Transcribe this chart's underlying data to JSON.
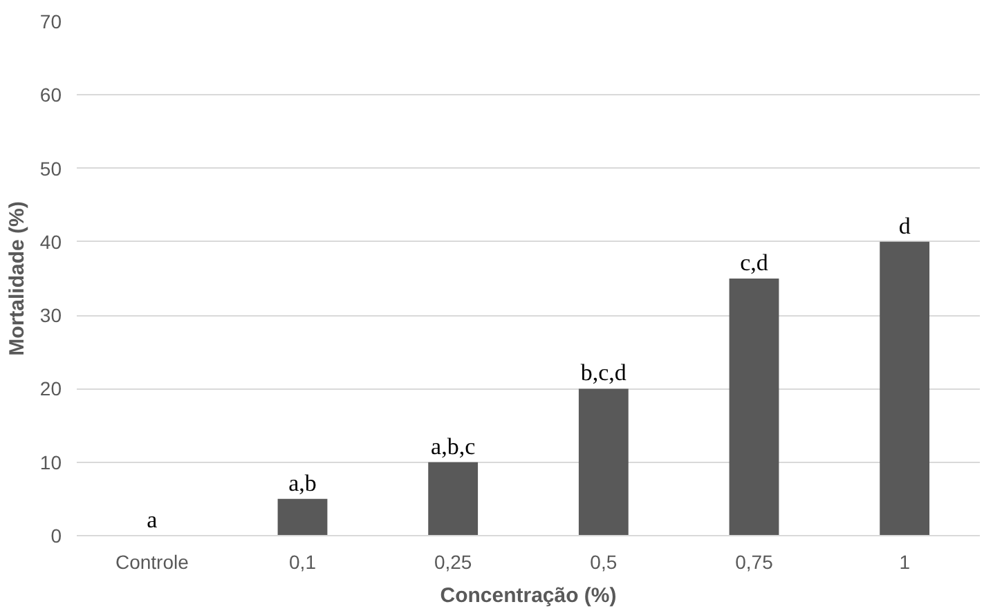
{
  "chart_data": {
    "type": "bar",
    "xlabel": "Concentração (%)",
    "ylabel": "Mortalidade (%)",
    "categories": [
      "Controle",
      "0,1",
      "0,25",
      "0,5",
      "0,75",
      "1"
    ],
    "values": [
      0,
      5,
      10,
      20,
      35,
      40
    ],
    "value_labels": [
      "a",
      "a,b",
      "a,b,c",
      "b,c,d",
      "c,d",
      "d"
    ],
    "color": "#595959",
    "ylim": [
      0,
      70
    ],
    "yticks": [
      0,
      10,
      20,
      30,
      40,
      50,
      60,
      70
    ],
    "grid": "y"
  }
}
